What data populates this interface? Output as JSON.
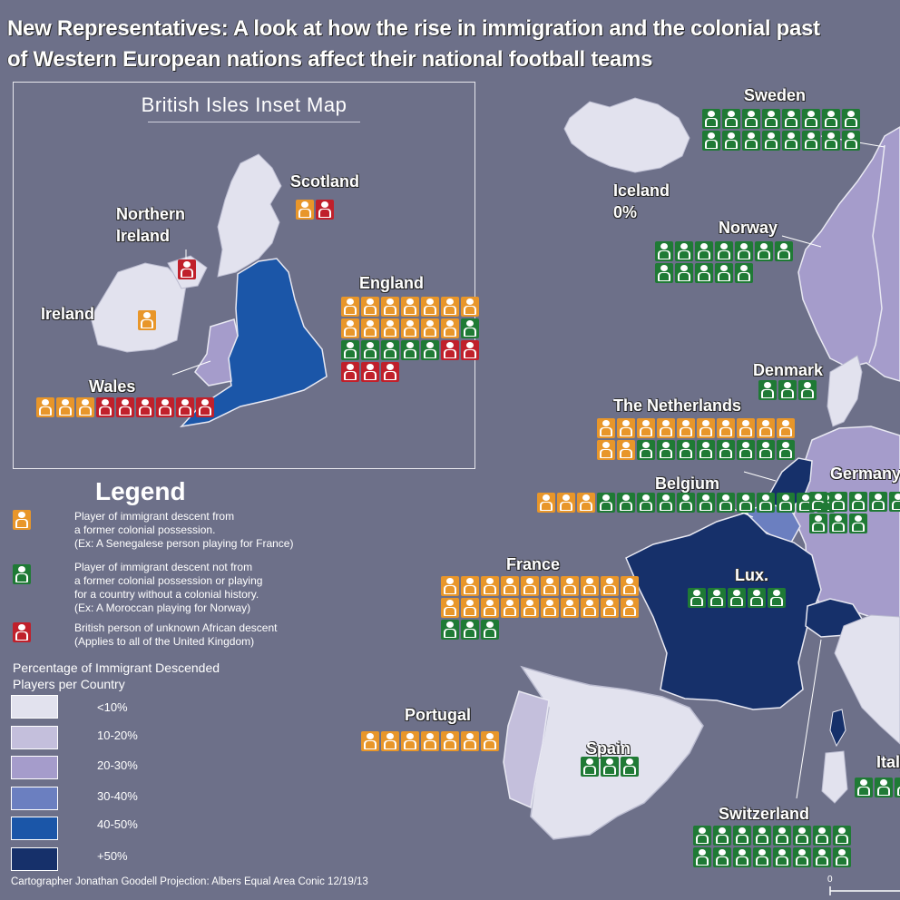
{
  "title": {
    "line1": "New Representatives: A look at how the rise in immigration and the colonial past",
    "line2": "of Western European nations affect their national football teams"
  },
  "inset": {
    "title": "British Isles Inset Map"
  },
  "colors": {
    "former_colonial": "#e8962a",
    "non_colonial": "#1f7a35",
    "uk_unknown_african": "#c0202b",
    "under_10": "#e2e2ee",
    "10_20": "#c4bfdc",
    "20_30": "#a59ccb",
    "30_40": "#6b7fc0",
    "40_50": "#1b56a8",
    "over_50": "#16306a",
    "background": "#6d7089"
  },
  "countries": [
    {
      "id": "scotland",
      "label": "Scotland",
      "icons": [
        [
          "o",
          "r"
        ]
      ]
    },
    {
      "id": "northern-ireland",
      "label": "Northern\nIreland",
      "label_lines": [
        "Northern",
        "Ireland"
      ],
      "icons": [
        [
          "r"
        ]
      ]
    },
    {
      "id": "ireland",
      "label": "Ireland",
      "icons": [
        [
          "o"
        ]
      ]
    },
    {
      "id": "england",
      "label": "England",
      "icons": [
        [
          "o",
          "o",
          "o",
          "o",
          "o",
          "o",
          "o"
        ],
        [
          "o",
          "o",
          "o",
          "o",
          "o",
          "o",
          "g"
        ],
        [
          "g",
          "g",
          "g",
          "g",
          "g",
          "r",
          "r"
        ],
        [
          "r",
          "r",
          "r"
        ]
      ]
    },
    {
      "id": "wales",
      "label": "Wales",
      "icons": [
        [
          "o",
          "o",
          "o",
          "r",
          "r",
          "r",
          "r",
          "r",
          "r"
        ]
      ]
    },
    {
      "id": "sweden",
      "label": "Sweden",
      "icons": [
        [
          "g",
          "g",
          "g",
          "g",
          "g",
          "g",
          "g",
          "g"
        ],
        [
          "g",
          "g",
          "g",
          "g",
          "g",
          "g",
          "g",
          "g"
        ]
      ]
    },
    {
      "id": "iceland",
      "label": "Iceland",
      "value": "0%",
      "icons": []
    },
    {
      "id": "norway",
      "label": "Norway",
      "icons": [
        [
          "g",
          "g",
          "g",
          "g",
          "g",
          "g",
          "g"
        ],
        [
          "g",
          "g",
          "g",
          "g",
          "g"
        ]
      ]
    },
    {
      "id": "denmark",
      "label": "Denmark",
      "icons": [
        [
          "g",
          "g",
          "g"
        ]
      ]
    },
    {
      "id": "netherlands",
      "label": "The Netherlands",
      "icons": [
        [
          "o",
          "o",
          "o",
          "o",
          "o",
          "o",
          "o",
          "o",
          "o",
          "o"
        ],
        [
          "o",
          "o",
          "g",
          "g",
          "g",
          "g",
          "g",
          "g",
          "g",
          "g"
        ]
      ]
    },
    {
      "id": "belgium",
      "label": "Belgium",
      "icons": [
        [
          "o",
          "o",
          "o",
          "g",
          "g",
          "g",
          "g",
          "g",
          "g",
          "g",
          "g",
          "g",
          "g",
          "g",
          "g"
        ]
      ]
    },
    {
      "id": "germany",
      "label": "Germany",
      "icons": [
        [
          "g",
          "g",
          "g",
          "g",
          "g"
        ],
        [
          "g",
          "g",
          "g"
        ]
      ]
    },
    {
      "id": "luxembourg",
      "label": "Lux.",
      "icons": [
        [
          "g",
          "g",
          "g",
          "g",
          "g"
        ]
      ]
    },
    {
      "id": "france",
      "label": "France",
      "icons": [
        [
          "o",
          "o",
          "o",
          "o",
          "o",
          "o",
          "o",
          "o",
          "o",
          "o"
        ],
        [
          "o",
          "o",
          "o",
          "o",
          "o",
          "o",
          "o",
          "o",
          "o",
          "o"
        ],
        [
          "g",
          "g",
          "g"
        ]
      ]
    },
    {
      "id": "portugal",
      "label": "Portugal",
      "icons": [
        [
          "o",
          "o",
          "o",
          "o",
          "o",
          "o",
          "o"
        ]
      ]
    },
    {
      "id": "spain",
      "label": "Spain",
      "icons": [
        [
          "g",
          "g",
          "g"
        ]
      ]
    },
    {
      "id": "switzerland",
      "label": "Switzerland",
      "icons": [
        [
          "g",
          "g",
          "g",
          "g",
          "g",
          "g",
          "g",
          "g"
        ],
        [
          "g",
          "g",
          "g",
          "g",
          "g",
          "g",
          "g",
          "g"
        ]
      ]
    },
    {
      "id": "italy",
      "label": "Italy",
      "icons": [
        [
          "g",
          "g",
          "g"
        ]
      ]
    }
  ],
  "legend": {
    "title": "Legend",
    "items": [
      {
        "type": "o",
        "lines": [
          "Player of immigrant descent from",
          "a former colonial possession.",
          "(Ex: A Senegalese person playing for France)"
        ]
      },
      {
        "type": "g",
        "lines": [
          "Player of immigrant descent not from",
          "a former colonial possession or playing",
          "for a country without a colonial history.",
          "(Ex: A Moroccan playing for Norway)"
        ]
      },
      {
        "type": "r",
        "lines": [
          "British person of unknown African descent",
          "(Applies to all of the United Kingdom)"
        ]
      }
    ],
    "pct_title_lines": [
      "Percentage of Immigrant Descended",
      "Players per Country"
    ],
    "classes": [
      {
        "label": "<10%",
        "color": "#e2e2ee"
      },
      {
        "label": "10-20%",
        "color": "#c4bfdc"
      },
      {
        "label": "20-30%",
        "color": "#a59ccb"
      },
      {
        "label": "30-40%",
        "color": "#6b7fc0"
      },
      {
        "label": "40-50%",
        "color": "#1b56a8"
      },
      {
        "label": "+50%",
        "color": "#16306a"
      }
    ]
  },
  "footer": {
    "credit": "Cartographer Jonathan Goodell Projection: Albers Equal Area Conic 12/19/13"
  },
  "scale": {
    "zero": "0"
  }
}
